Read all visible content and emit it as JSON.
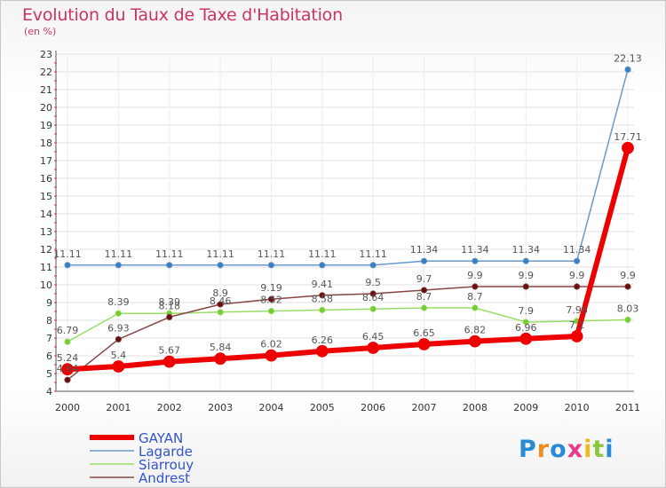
{
  "header": {
    "title": "Evolution du Taux de Taxe d'Habitation",
    "subtitle": "(en %)"
  },
  "logo": {
    "text": "Proxiti",
    "letter_colors": [
      "#2b8ad4",
      "#f08c1e",
      "#2b8ad4",
      "#e83a8c",
      "#f0b91e",
      "#8cc83c",
      "#2b8ad4"
    ]
  },
  "chart_data": {
    "type": "line",
    "title": "Evolution du Taux de Taxe d'Habitation",
    "subtitle": "(en %)",
    "x": [
      "2000",
      "2001",
      "2002",
      "2003",
      "2004",
      "2005",
      "2006",
      "2007",
      "2008",
      "2009",
      "2010",
      "2011"
    ],
    "ylim": [
      4,
      23
    ],
    "yticks": [
      4,
      5,
      6,
      7,
      8,
      9,
      10,
      11,
      12,
      13,
      14,
      15,
      16,
      17,
      18,
      19,
      20,
      21,
      22,
      23
    ],
    "grid": true,
    "legend_position": "bottom-left",
    "series": [
      {
        "name": "Lagarde",
        "color": "#6699cc",
        "values": [
          11.11,
          11.11,
          11.11,
          11.11,
          11.11,
          11.11,
          11.11,
          11.34,
          11.34,
          11.34,
          11.34,
          22.13
        ],
        "labels": [
          "11.11",
          "11.11",
          "11.11",
          "11.11",
          "11.11",
          "11.11",
          "11.11",
          "11.34",
          "11.34",
          "11.34",
          "11.34",
          "22.13"
        ]
      },
      {
        "name": "Siarrouy",
        "color": "#99dd66",
        "values": [
          6.79,
          8.39,
          8.39,
          8.46,
          8.52,
          8.58,
          8.64,
          8.7,
          8.7,
          7.9,
          7.96,
          8.03
        ],
        "labels": [
          "6.79",
          "8.39",
          "8.39",
          "8.46",
          "8.52",
          "8.58",
          "8.64",
          "8.7",
          "8.7",
          "7.9",
          "7.96",
          "8.03"
        ]
      },
      {
        "name": "Andrest",
        "color": "#884444",
        "values": [
          4.64,
          6.93,
          8.18,
          8.9,
          9.19,
          9.41,
          9.5,
          9.7,
          9.9,
          9.9,
          9.9,
          9.9
        ],
        "labels": [
          "4.64",
          "6.93",
          "8.18",
          "8.9",
          "9.19",
          "9.41",
          "9.5",
          "9.7",
          "9.9",
          "9.9",
          "9.9",
          "9.9"
        ]
      },
      {
        "name": "GAYAN",
        "color": "#ee0000",
        "values": [
          5.24,
          5.4,
          5.67,
          5.84,
          6.02,
          6.26,
          6.45,
          6.65,
          6.82,
          6.96,
          7.1,
          17.71
        ],
        "labels": [
          "5.24",
          "5.4",
          "5.67",
          "5.84",
          "6.02",
          "6.26",
          "6.45",
          "6.65",
          "6.82",
          "6.96",
          "7.1",
          "17.71"
        ]
      }
    ],
    "legend": [
      "GAYAN",
      "Lagarde",
      "Siarrouy",
      "Andrest"
    ]
  }
}
